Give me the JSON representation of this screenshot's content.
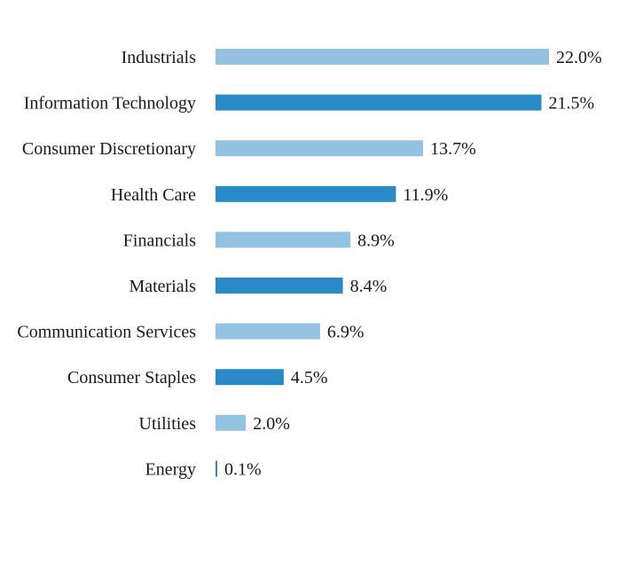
{
  "chart_data": {
    "type": "bar",
    "orientation": "horizontal",
    "categories": [
      "Industrials",
      "Information Technology",
      "Consumer Discretionary",
      "Health Care",
      "Financials",
      "Materials",
      "Communication Services",
      "Consumer Staples",
      "Utilities",
      "Energy"
    ],
    "values": [
      22.0,
      21.5,
      13.7,
      11.9,
      8.9,
      8.4,
      6.9,
      4.5,
      2.0,
      0.1
    ],
    "value_labels": [
      "22.0%",
      "21.5%",
      "13.7%",
      "11.9%",
      "8.9%",
      "8.4%",
      "6.9%",
      "4.5%",
      "2.0%",
      "0.1%"
    ],
    "unit": "%",
    "title": "",
    "xlabel": "",
    "ylabel": "",
    "xlim": [
      0,
      22.0
    ],
    "grid": false,
    "legend": "none",
    "colors": [
      "#94c3e2",
      "#2a8ac8"
    ]
  }
}
